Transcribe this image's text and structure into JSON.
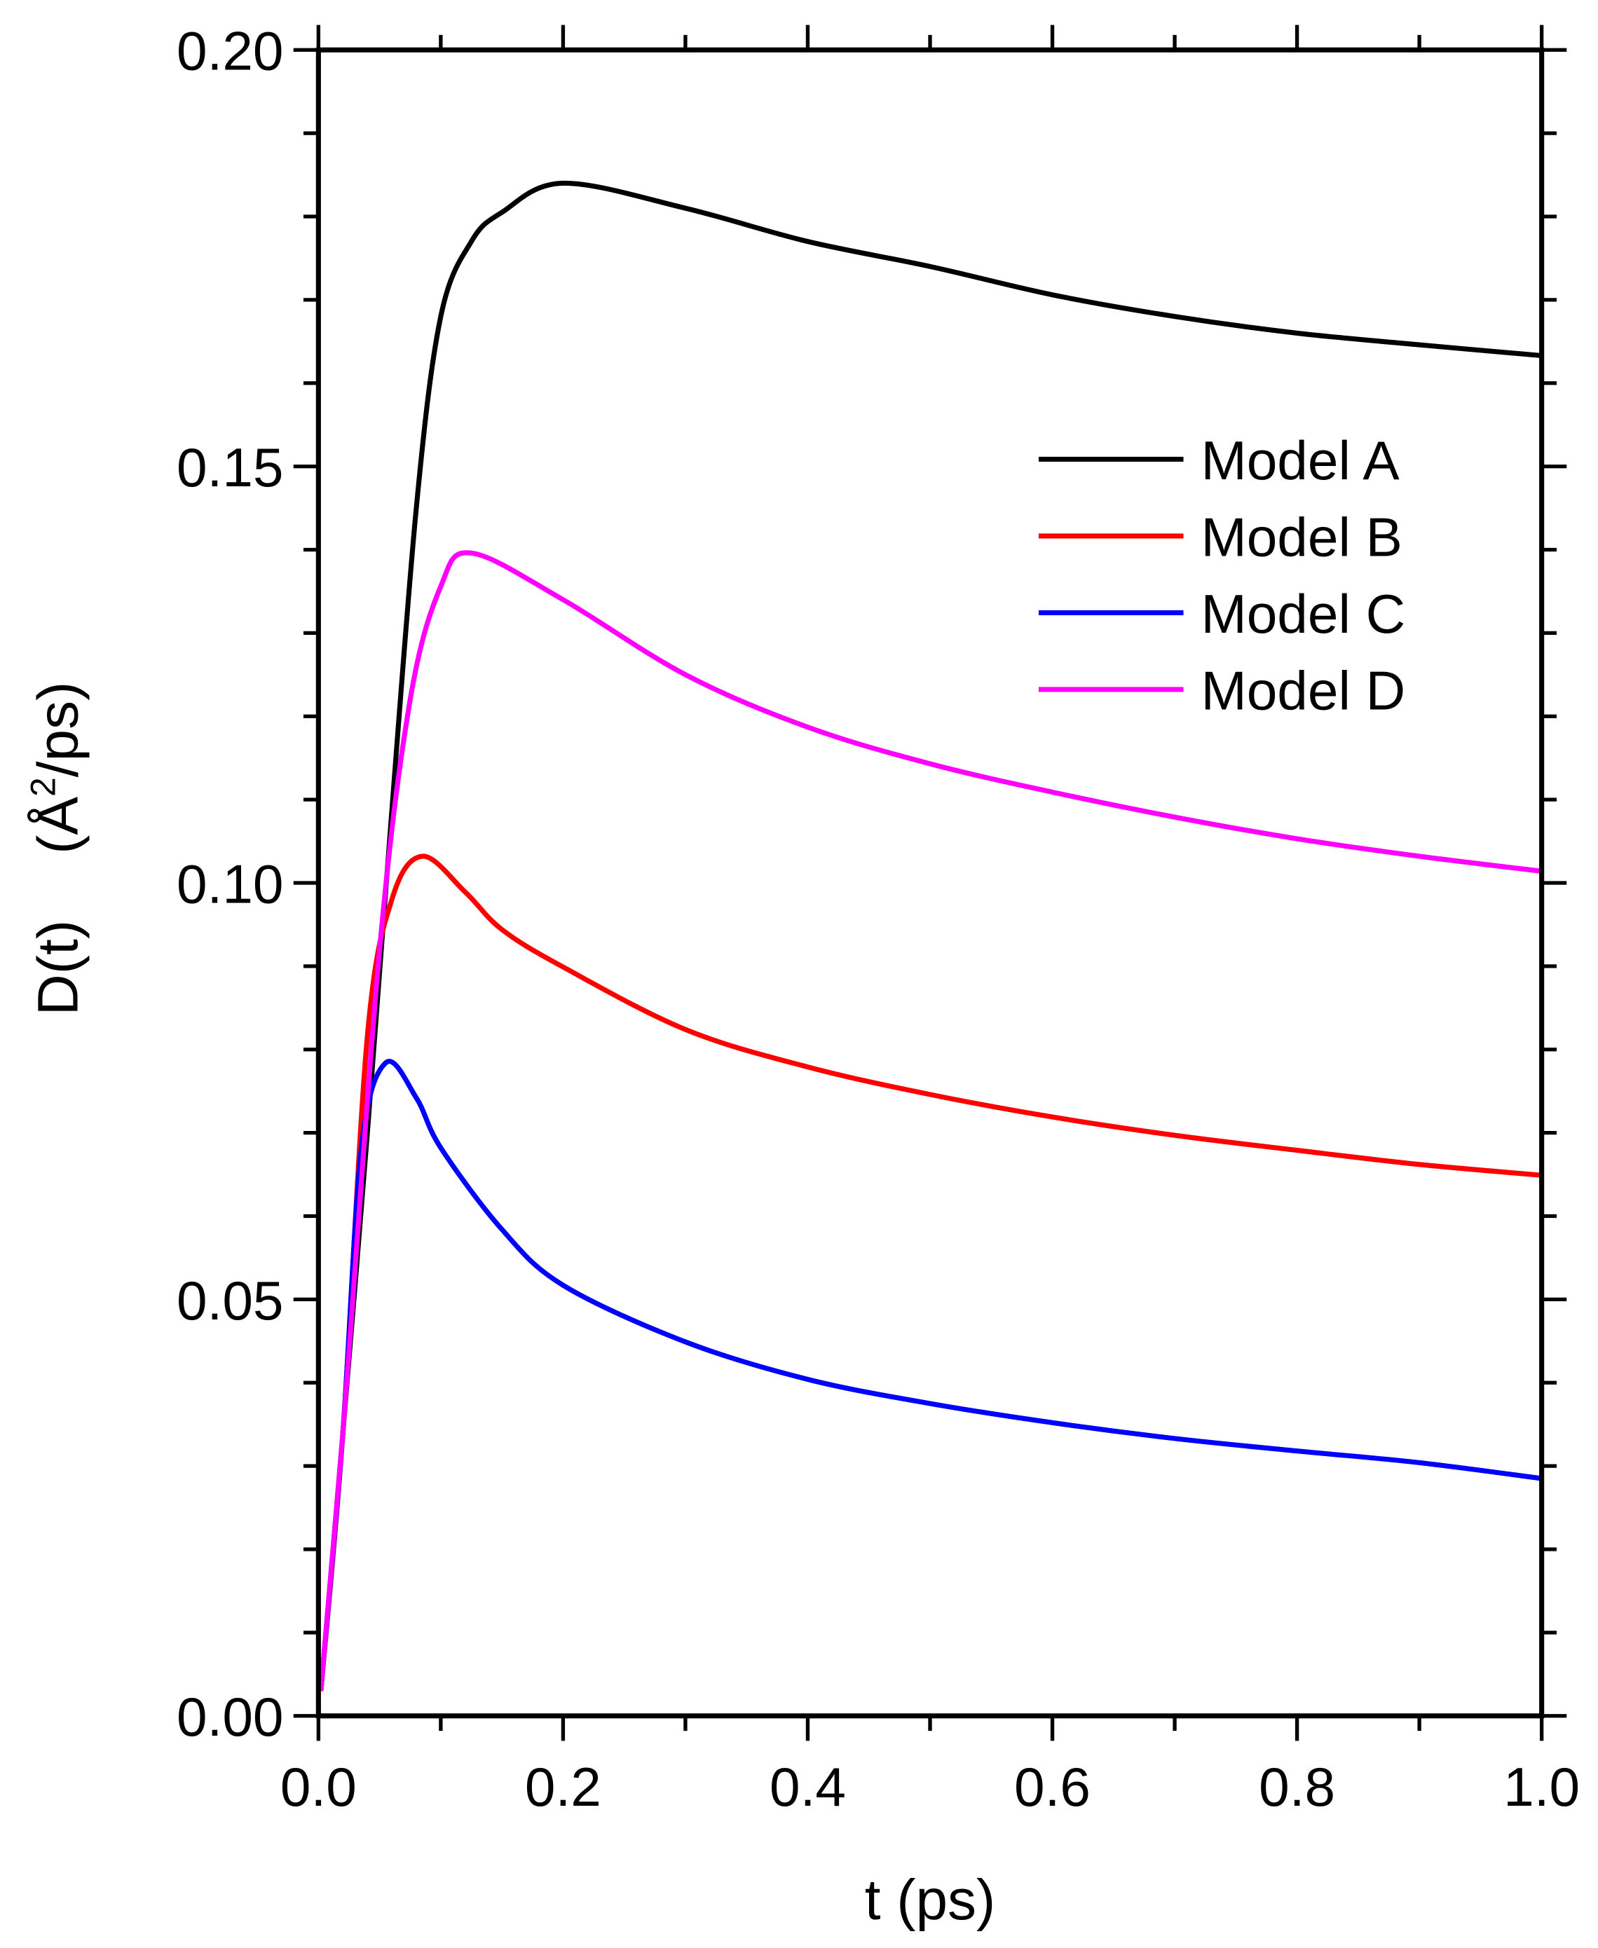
{
  "chart_data": {
    "type": "line",
    "title": "",
    "xlabel": "t (ps)",
    "ylabel_main": "D(t)",
    "ylabel_unit_pre": "(Å",
    "ylabel_unit_sup": "2",
    "ylabel_unit_post": "/ps)",
    "xlim": [
      0.0,
      1.0
    ],
    "ylim": [
      0.0,
      0.2
    ],
    "xticks": [
      "0.0",
      "0.2",
      "0.4",
      "0.6",
      "0.8",
      "1.0"
    ],
    "yticks": [
      "0.00",
      "0.05",
      "0.10",
      "0.15",
      "0.20"
    ],
    "grid": false,
    "legend_position": "upper-right",
    "series": [
      {
        "name": "Model A",
        "color": "#000000",
        "x": [
          0.002,
          0.02,
          0.04,
          0.056,
          0.08,
          0.1,
          0.125,
          0.15,
          0.2,
          0.3,
          0.4,
          0.5,
          0.6,
          0.7,
          0.8,
          0.9,
          1.0
        ],
        "y": [
          0.003,
          0.034,
          0.07,
          0.101,
          0.145,
          0.168,
          0.177,
          0.1805,
          0.184,
          0.181,
          0.177,
          0.174,
          0.1706,
          0.168,
          0.166,
          0.1646,
          0.1633
        ]
      },
      {
        "name": "Model B",
        "color": "#ff0000",
        "x": [
          0.002,
          0.02,
          0.04,
          0.06,
          0.085,
          0.12,
          0.15,
          0.2,
          0.3,
          0.4,
          0.5,
          0.6,
          0.7,
          0.8,
          0.9,
          1.0
        ],
        "y": [
          0.003,
          0.034,
          0.0816,
          0.098,
          0.1032,
          0.0989,
          0.0944,
          0.0899,
          0.0824,
          0.0779,
          0.0746,
          0.0719,
          0.0697,
          0.0679,
          0.0662,
          0.0649
        ]
      },
      {
        "name": "Model C",
        "color": "#0000ff",
        "x": [
          0.002,
          0.02,
          0.035,
          0.055,
          0.08,
          0.1,
          0.15,
          0.2,
          0.3,
          0.4,
          0.5,
          0.6,
          0.7,
          0.8,
          0.9,
          1.0
        ],
        "y": [
          0.003,
          0.034,
          0.068,
          0.0784,
          0.0742,
          0.0682,
          0.0584,
          0.0517,
          0.0449,
          0.0404,
          0.0375,
          0.0352,
          0.0333,
          0.0318,
          0.0304,
          0.0285
        ]
      },
      {
        "name": "Model D",
        "color": "#ff00ff",
        "x": [
          0.002,
          0.02,
          0.05,
          0.075,
          0.1,
          0.125,
          0.2,
          0.3,
          0.4,
          0.5,
          0.6,
          0.7,
          0.8,
          0.9,
          1.0
        ],
        "y": [
          0.003,
          0.034,
          0.092,
          0.122,
          0.1356,
          0.1396,
          0.134,
          0.125,
          0.1187,
          0.1143,
          0.1109,
          0.1079,
          0.1053,
          0.1032,
          0.1014
        ]
      }
    ]
  }
}
